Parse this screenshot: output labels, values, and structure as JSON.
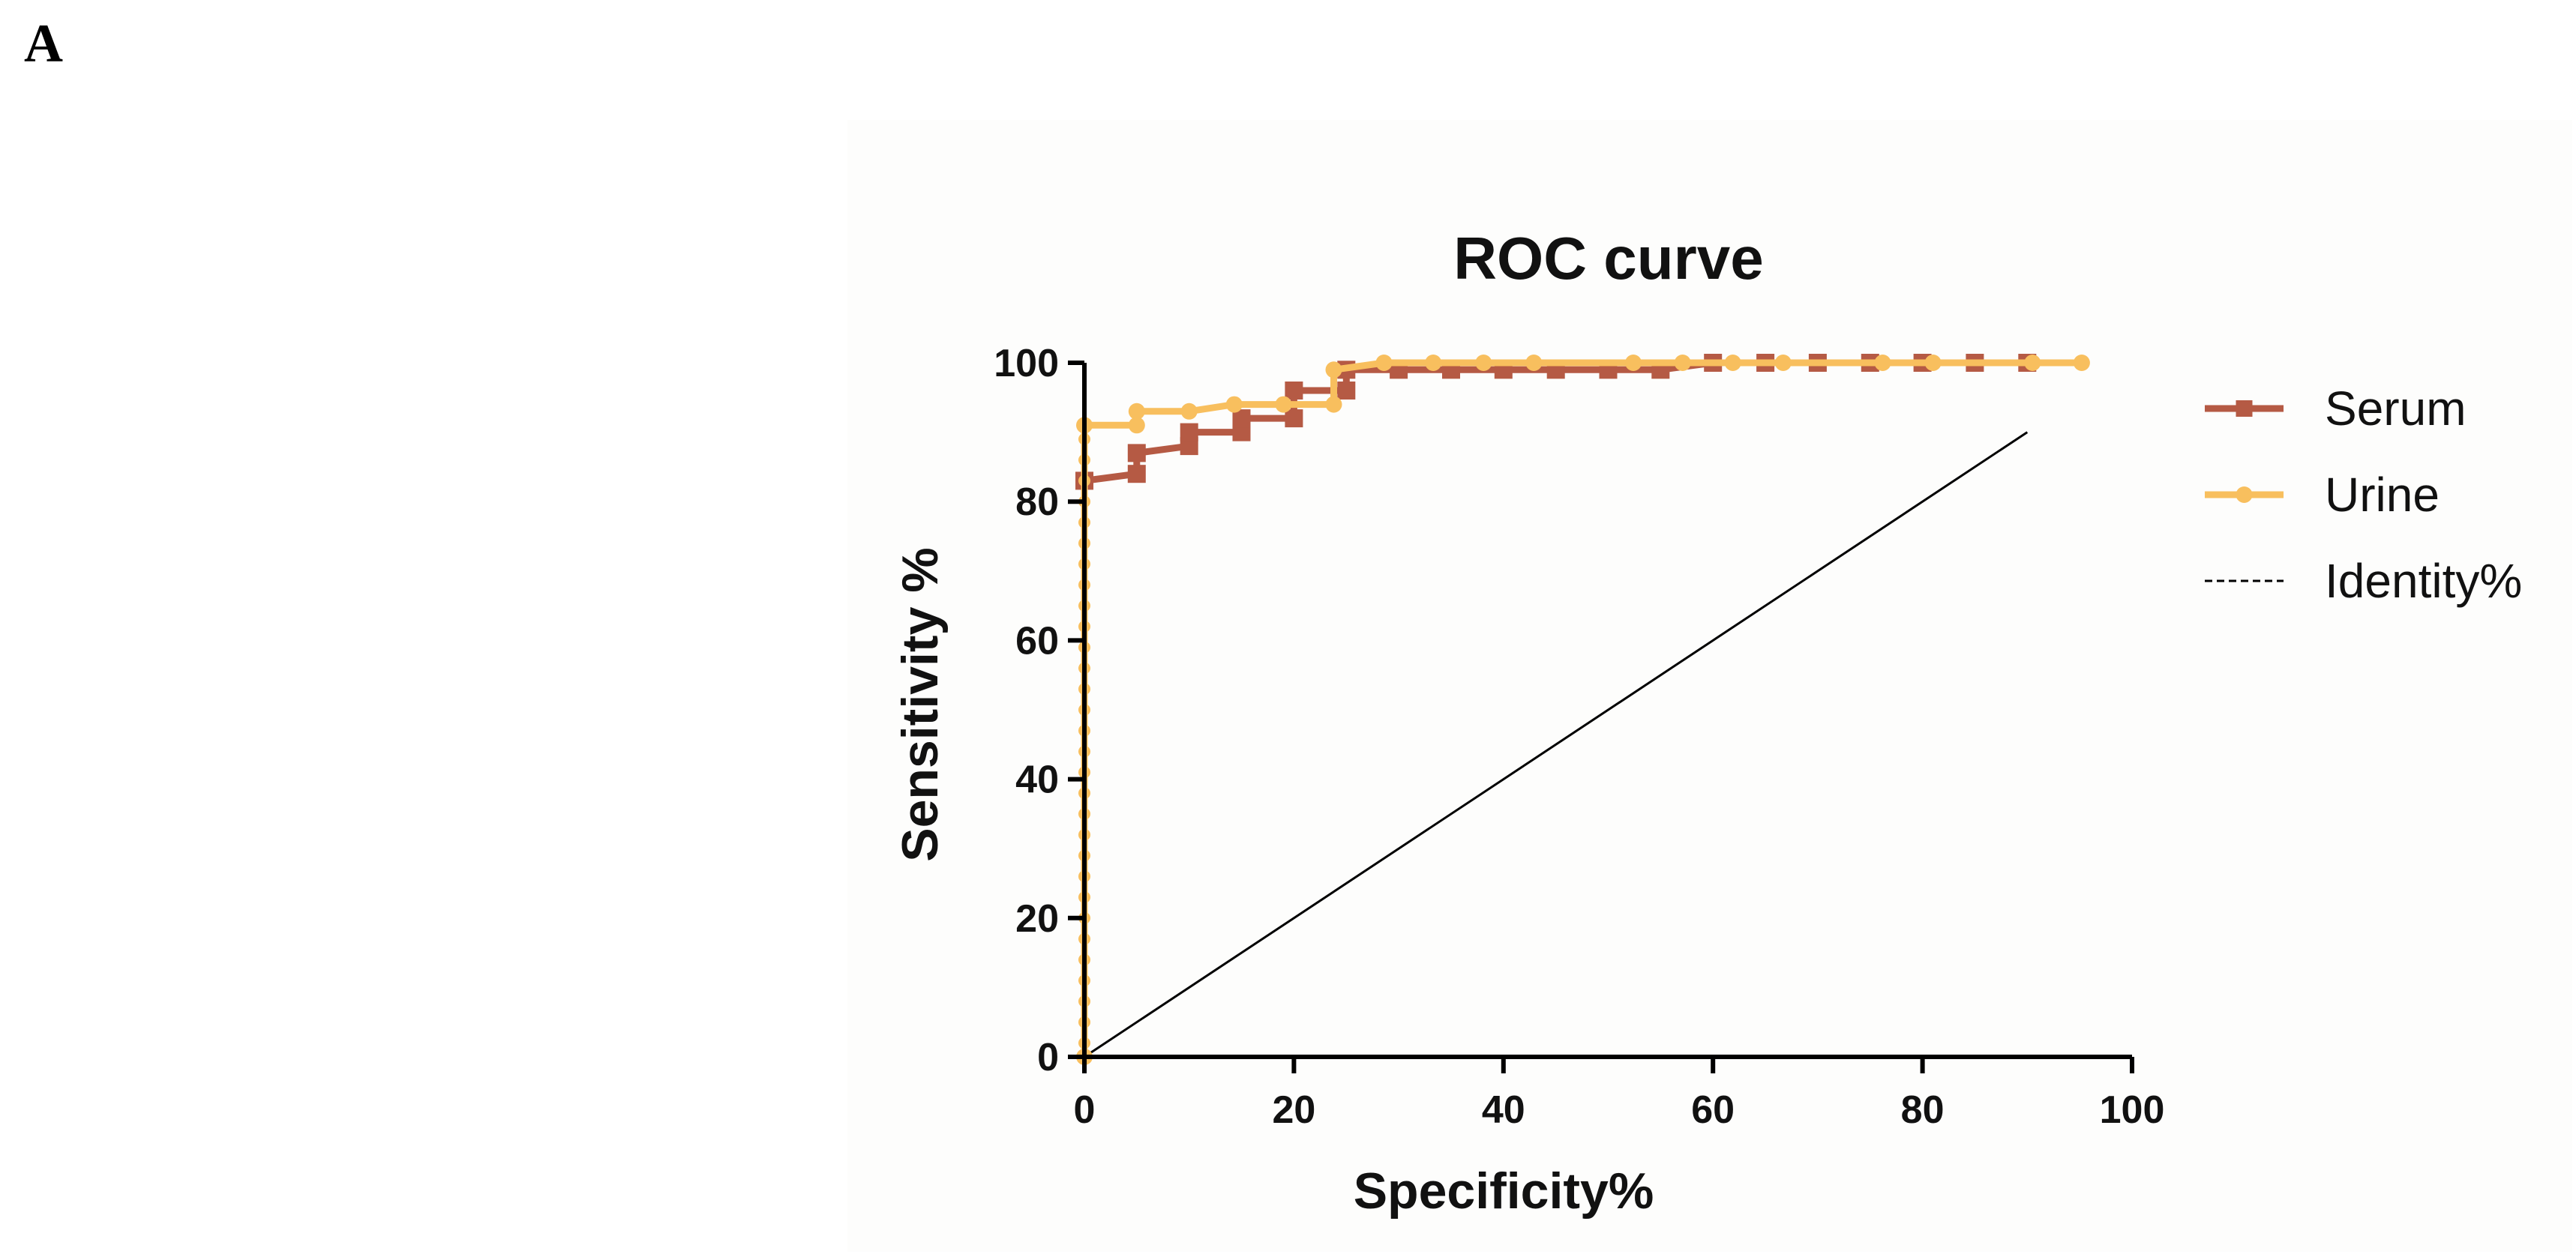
{
  "panel_label": "A",
  "chart_data": {
    "type": "line",
    "title": "ROC curve",
    "xlabel": "Specificity%",
    "ylabel": "Sensitivity %",
    "xlim": [
      0,
      100
    ],
    "ylim": [
      0,
      100
    ],
    "xticks": [
      "0",
      "20",
      "40",
      "60",
      "80",
      "100"
    ],
    "yticks": [
      "0",
      "20",
      "40",
      "60",
      "80",
      "100"
    ],
    "legend_position": "right",
    "grid": false,
    "series": [
      {
        "name": "Serum",
        "color": "#b55a44",
        "marker": "square",
        "x": [
          0,
          0,
          5,
          5,
          10,
          10,
          15,
          15,
          20,
          20,
          25,
          25,
          30,
          35,
          40,
          45,
          50,
          55,
          60,
          65,
          70,
          75,
          80,
          85,
          90
        ],
        "y": [
          0,
          83,
          84,
          87,
          88,
          90,
          90,
          92,
          92,
          96,
          96,
          99,
          99,
          99,
          99,
          99,
          99,
          99,
          100,
          100,
          100,
          100,
          100,
          100,
          100
        ]
      },
      {
        "name": "Urine",
        "color": "#f8bf5e",
        "marker": "circle",
        "x": [
          0,
          0,
          5,
          5,
          10,
          14.3,
          19,
          23.8,
          23.8,
          28.6,
          33.3,
          38.1,
          42.9,
          52.4,
          57.1,
          61.9,
          66.7,
          76.2,
          81,
          90.5,
          95.2
        ],
        "y": [
          0,
          91,
          91,
          93,
          93,
          94,
          94,
          94,
          99,
          100,
          100,
          100,
          100,
          100,
          100,
          100,
          100,
          100,
          100,
          100,
          100
        ]
      },
      {
        "name": "Identity%",
        "color": "#000000",
        "marker": "none",
        "style": "solid",
        "x": [
          0,
          90
        ],
        "y": [
          0,
          90
        ]
      }
    ]
  }
}
